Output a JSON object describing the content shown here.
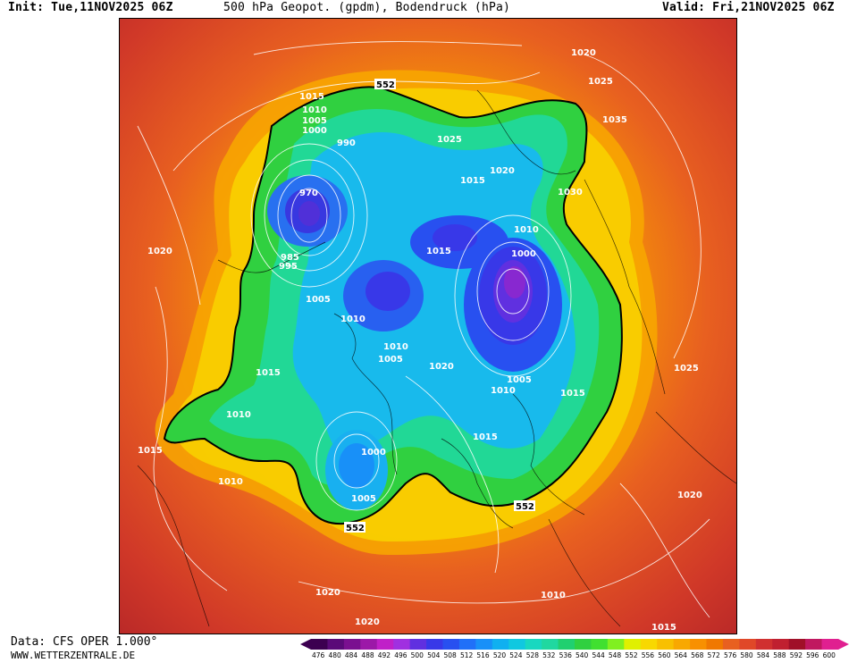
{
  "header": {
    "init": "Init: Tue,11NOV2025 06Z",
    "title": "500 hPa Geopot. (gpdm), Bodendruck (hPa)",
    "valid": "Valid: Fri,21NOV2025 06Z"
  },
  "footer": {
    "data_source": "Data: CFS OPER 1.000°",
    "site": "WWW.WETTERZENTRALE.DE"
  },
  "geopotential_contour_label": "552",
  "pressure_labels": [
    "1020",
    "1025",
    "1035",
    "1015",
    "1010",
    "1005",
    "1000",
    "990",
    "970",
    "985",
    "995",
    "1025",
    "1020",
    "1015",
    "1030",
    "1010",
    "1000",
    "1015",
    "1005",
    "1010",
    "1010",
    "1005",
    "1020",
    "1010",
    "1015",
    "1015",
    "1010",
    "1020",
    "1015",
    "1010",
    "1005",
    "1000",
    "1005",
    "1020",
    "1020",
    "1010",
    "1015",
    "1025",
    "1020",
    "1015"
  ],
  "colorbar": {
    "ticks": [
      "476",
      "480",
      "484",
      "488",
      "492",
      "496",
      "500",
      "504",
      "508",
      "512",
      "516",
      "520",
      "524",
      "528",
      "532",
      "536",
      "540",
      "544",
      "548",
      "552",
      "556",
      "560",
      "564",
      "568",
      "572",
      "576",
      "580",
      "584",
      "588",
      "592",
      "596",
      "600"
    ],
    "colors": [
      "#3c0050",
      "#5a0a78",
      "#7a1090",
      "#9c18a8",
      "#c020c8",
      "#a030e0",
      "#6030e0",
      "#3838e8",
      "#2850f0",
      "#2070f8",
      "#1890f8",
      "#10b0f0",
      "#10c8e0",
      "#18d8c0",
      "#20d8a0",
      "#20d070",
      "#30d040",
      "#40e030",
      "#80f020",
      "#e0f000",
      "#f8d800",
      "#f8c000",
      "#f8a800",
      "#f89000",
      "#f07800",
      "#e86020",
      "#e04828",
      "#d03030",
      "#c02030",
      "#a01028",
      "#c01860",
      "#e02090"
    ]
  }
}
